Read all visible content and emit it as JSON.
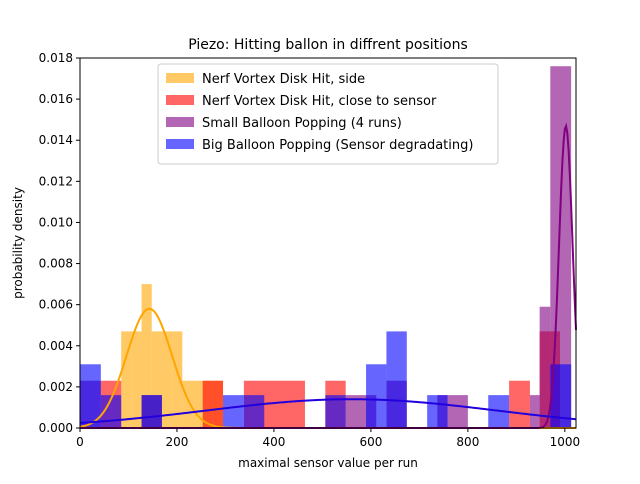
{
  "chart_data": {
    "type": "histogram",
    "title": "Piezo: Hitting ballon in diffrent positions",
    "xlabel": "maximal sensor value per run",
    "ylabel": "probability density",
    "xlim": [
      0,
      1023
    ],
    "ylim": [
      0,
      0.018
    ],
    "xticks": [
      0,
      200,
      400,
      600,
      800,
      1000
    ],
    "yticks": [
      0.0,
      0.002,
      0.004,
      0.006,
      0.008,
      0.01,
      0.012,
      0.014,
      0.016,
      0.018
    ],
    "xtick_labels": [
      "0",
      "200",
      "400",
      "600",
      "800",
      "1000"
    ],
    "ytick_labels": [
      "0.000",
      "0.002",
      "0.004",
      "0.006",
      "0.008",
      "0.010",
      "0.012",
      "0.014",
      "0.016",
      "0.018"
    ],
    "grid": false,
    "legend_position": "top-center",
    "bar_opacity": 0.6,
    "series": [
      {
        "name": "Nerf Vortex Disk Hit, side",
        "color": "#ffa500",
        "curve_color": "#ffa500",
        "bins": [
          [
            85,
            106,
            0.0047
          ],
          [
            106,
            127,
            0.0047
          ],
          [
            127,
            148,
            0.007
          ],
          [
            148,
            169,
            0.0047
          ],
          [
            169,
            190,
            0.0047
          ],
          [
            190,
            211,
            0.0047
          ],
          [
            211,
            253,
            0.0023
          ],
          [
            253,
            295,
            0.0023
          ]
        ],
        "curve": {
          "type": "gaussian",
          "mean": 143,
          "sd": 47,
          "peak": 0.0058
        }
      },
      {
        "name": "Nerf Vortex Disk Hit, close to sensor",
        "color": "#ff0000",
        "curve_color": "#ff0000",
        "bins": [
          [
            43,
            85,
            0.0023
          ],
          [
            253,
            295,
            0.0023
          ],
          [
            338,
            464,
            0.0023
          ],
          [
            506,
            548,
            0.0023
          ],
          [
            885,
            928,
            0.0023
          ],
          [
            948,
            990,
            0.0047
          ]
        ],
        "curve": null
      },
      {
        "name": "Small Balloon Popping (4 runs)",
        "color": "#800080",
        "curve_color": "#800080",
        "bins": [
          [
            0,
            43,
            0.0023
          ],
          [
            127,
            169,
            0.0016
          ],
          [
            548,
            611,
            0.0016
          ],
          [
            632,
            674,
            0.0023
          ],
          [
            737,
            800,
            0.0016
          ],
          [
            928,
            948,
            0.0016
          ],
          [
            948,
            970,
            0.0059
          ],
          [
            970,
            1013,
            0.0176
          ]
        ],
        "curve": {
          "type": "gaussian",
          "mean": 1002,
          "sd": 14,
          "peak": 0.0147
        }
      },
      {
        "name": "Big Balloon Popping (Sensor degradating)",
        "color": "#0000ff",
        "curve_color": "#2200dd",
        "bins": [
          [
            0,
            43,
            0.0031
          ],
          [
            43,
            85,
            0.0016
          ],
          [
            127,
            169,
            0.0016
          ],
          [
            295,
            338,
            0.0016
          ],
          [
            338,
            380,
            0.0016
          ],
          [
            506,
            548,
            0.0016
          ],
          [
            590,
            632,
            0.0031
          ],
          [
            632,
            674,
            0.0047
          ],
          [
            716,
            758,
            0.0016
          ],
          [
            842,
            885,
            0.0016
          ],
          [
            970,
            1013,
            0.0031
          ]
        ],
        "curve": {
          "type": "gaussian",
          "mean": 560,
          "sd": 300,
          "peak": 0.0014
        }
      }
    ]
  }
}
